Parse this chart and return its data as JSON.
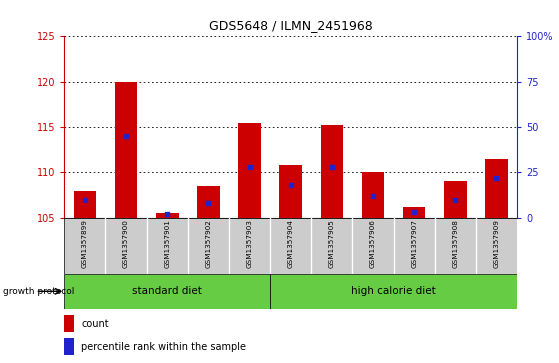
{
  "title": "GDS5648 / ILMN_2451968",
  "samples": [
    "GSM1357899",
    "GSM1357900",
    "GSM1357901",
    "GSM1357902",
    "GSM1357903",
    "GSM1357904",
    "GSM1357905",
    "GSM1357906",
    "GSM1357907",
    "GSM1357908",
    "GSM1357909"
  ],
  "count_values": [
    108.0,
    120.0,
    105.5,
    108.5,
    115.5,
    110.8,
    115.2,
    110.0,
    106.2,
    109.0,
    111.5
  ],
  "percentile_values": [
    10,
    45,
    2,
    8,
    28,
    18,
    28,
    12,
    3,
    10,
    22
  ],
  "y_min": 105,
  "y_max": 125,
  "y_ticks": [
    105,
    110,
    115,
    120,
    125
  ],
  "y2_ticks": [
    0,
    25,
    50,
    75,
    100
  ],
  "group1_label": "standard diet",
  "group2_label": "high calorie diet",
  "group_protocol_label": "growth protocol",
  "legend_count_label": "count",
  "legend_percentile_label": "percentile rank within the sample",
  "bar_color": "#cc0000",
  "marker_color": "#2222cc",
  "bar_width": 0.55,
  "tick_color_left": "#cc0000",
  "tick_color_right": "#2222cc",
  "green_color": "#66cc44",
  "gray_color": "#cccccc"
}
